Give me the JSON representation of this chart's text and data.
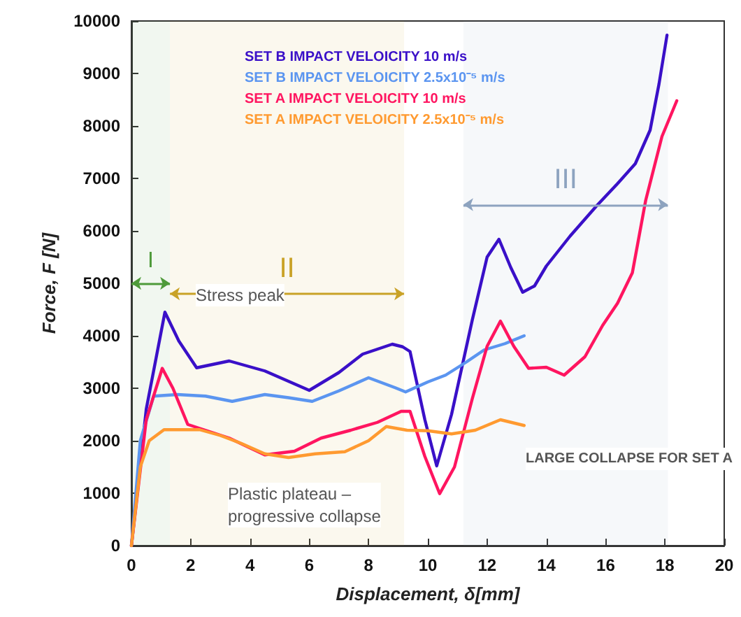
{
  "chart_data": {
    "type": "line",
    "xlabel": "Displacement, δ[mm]",
    "ylabel": "Force, F [N]",
    "xlim": [
      0,
      20
    ],
    "xticks": [
      0,
      2,
      4,
      6,
      8,
      10,
      12,
      14,
      16,
      18,
      20
    ],
    "ylim": [
      0,
      10000
    ],
    "yticks": [
      0,
      1000,
      2000,
      3000,
      4000,
      5000,
      6000,
      7000,
      8000,
      9000,
      10000
    ],
    "grid": false,
    "legend": "top left",
    "marker": "none",
    "line_style": "solid",
    "series": [
      {
        "name": "SET B IMPACT VELOICITY 10 m/s",
        "color": "#3a10c8",
        "x": [
          0,
          0.5,
          1.13,
          1.6,
          2.2,
          3.3,
          4.5,
          6.0,
          7.0,
          7.8,
          8.8,
          9.15,
          9.4,
          9.9,
          10.3,
          10.8,
          11.5,
          12.0,
          12.4,
          12.8,
          13.2,
          13.6,
          14.0,
          14.8,
          15.7,
          16.4,
          17.0,
          17.5,
          17.8,
          18.07
        ],
        "values": [
          0,
          2600,
          4450,
          3900,
          3390,
          3520,
          3330,
          2960,
          3300,
          3650,
          3840,
          3790,
          3700,
          2400,
          1520,
          2500,
          4300,
          5500,
          5840,
          5300,
          4830,
          4950,
          5330,
          5900,
          6480,
          6900,
          7280,
          7920,
          8800,
          9730
        ]
      },
      {
        "name": "SET B IMPACT VELOICITY 2.5x10⁻⁵ m/s",
        "color": "#5b95f0",
        "x": [
          0,
          0.3,
          0.75,
          1.55,
          2.5,
          3.4,
          4.5,
          5.3,
          6.1,
          7.0,
          8.0,
          8.9,
          9.25,
          10.0,
          10.6,
          11.3,
          11.9,
          12.6,
          13.25
        ],
        "values": [
          0,
          2000,
          2850,
          2880,
          2850,
          2750,
          2880,
          2820,
          2750,
          2950,
          3200,
          3010,
          2930,
          3120,
          3250,
          3500,
          3730,
          3850,
          4000
        ]
      },
      {
        "name": "SET A IMPACT VELOICITY 10 m/s",
        "color": "#ff1560",
        "x": [
          0,
          0.5,
          1.04,
          1.4,
          1.9,
          3.3,
          4.5,
          5.5,
          6.4,
          7.4,
          8.3,
          9.1,
          9.4,
          9.9,
          10.4,
          10.9,
          11.5,
          12.0,
          12.45,
          12.9,
          13.4,
          14.0,
          14.6,
          15.3,
          15.9,
          16.4,
          16.9,
          17.35,
          17.9,
          18.4
        ],
        "values": [
          0,
          2400,
          3380,
          3000,
          2310,
          2050,
          1730,
          1800,
          2050,
          2200,
          2350,
          2560,
          2560,
          1700,
          990,
          1500,
          2800,
          3800,
          4280,
          3800,
          3380,
          3400,
          3250,
          3600,
          4200,
          4620,
          5200,
          6580,
          7800,
          8480
        ]
      },
      {
        "name": "SET A IMPACT VELOICITY 2.5x10⁻⁵ m/s",
        "color": "#ff9a30",
        "x": [
          0,
          0.3,
          0.6,
          1.1,
          2.3,
          3.0,
          3.7,
          4.5,
          5.3,
          6.2,
          7.2,
          8.0,
          8.6,
          9.3,
          10.0,
          10.8,
          11.6,
          12.45,
          13.25
        ],
        "values": [
          0,
          1500,
          2000,
          2210,
          2210,
          2100,
          1950,
          1750,
          1680,
          1750,
          1790,
          2000,
          2270,
          2200,
          2190,
          2130,
          2200,
          2400,
          2290
        ]
      }
    ],
    "bands": [
      {
        "axis": "x",
        "from": 0,
        "to": 1.3,
        "label": "I",
        "color": "#4e9a3a"
      },
      {
        "axis": "x",
        "from": 1.3,
        "to": 9.2,
        "label": "II",
        "color": "#c9a227"
      },
      {
        "axis": "x",
        "from": 11.2,
        "to": 18.1,
        "label": "III",
        "color": "#8da3bf"
      }
    ],
    "annotations": [
      "Stress peak",
      "Plastic plateau –\nprogressive collapse",
      "LARGE COLLAPSE FOR SET A"
    ]
  }
}
